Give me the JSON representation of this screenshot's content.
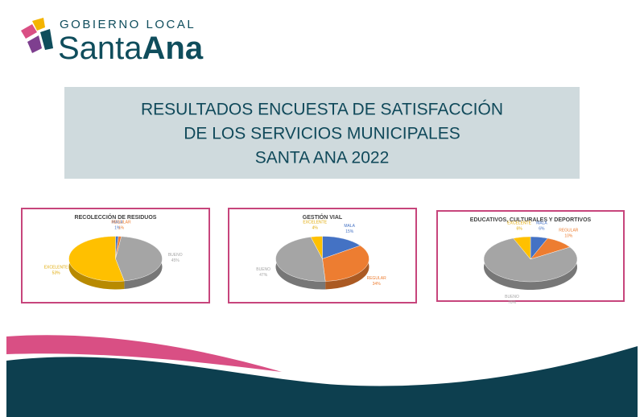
{
  "logo": {
    "top": "GOBIERNO LOCAL",
    "name_regular": "Santa",
    "name_bold": "Ana"
  },
  "banner": {
    "lines": [
      "RESULTADOS ENCUESTA DE SATISFACCIÓN",
      "DE LOS SERVICIOS MUNICIPALES",
      "SANTA ANA 2022"
    ]
  },
  "chart_data": [
    {
      "type": "pie",
      "title": "RECOLECCIÓN DE RESIDUOS",
      "categories": [
        "MALA",
        "REGULAR",
        "BUENO",
        "EXCELENTE"
      ],
      "values": [
        1,
        1,
        45,
        53
      ],
      "value_labels": [
        "1%",
        "1%",
        "45%",
        "53%"
      ],
      "colors": [
        "#4472c4",
        "#ed7d31",
        "#a5a5a5",
        "#ffc000"
      ]
    },
    {
      "type": "pie",
      "title": "GESTIÓN VIAL",
      "categories": [
        "MALA",
        "REGULAR",
        "BUENO",
        "EXCELENTE"
      ],
      "values": [
        15,
        34,
        47,
        4
      ],
      "value_labels": [
        "15%",
        "34%",
        "47%",
        "4%"
      ],
      "colors": [
        "#4472c4",
        "#ed7d31",
        "#a5a5a5",
        "#ffc000"
      ]
    },
    {
      "type": "pie",
      "title": "EDUCATIVOS, CULTURALES Y DEPORTIVOS",
      "categories": [
        "MALA",
        "REGULAR",
        "BUENO",
        "EXCELENTE"
      ],
      "values": [
        6,
        10,
        78,
        6
      ],
      "value_labels": [
        "6%",
        "10%",
        "78%",
        "6%"
      ],
      "colors": [
        "#4472c4",
        "#ed7d31",
        "#a5a5a5",
        "#ffc000"
      ]
    }
  ]
}
